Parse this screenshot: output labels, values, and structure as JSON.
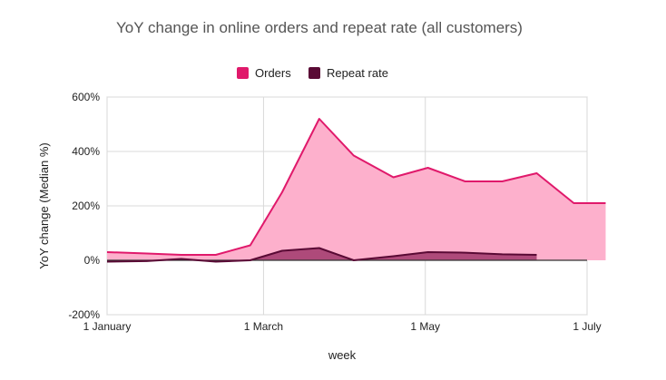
{
  "chart_data": {
    "type": "area",
    "title": "YoY change in online orders and repeat rate (all customers)",
    "xlabel": "week",
    "ylabel": "YoY change (Median %)",
    "x_ticks": [
      {
        "label": "1 January",
        "value": 0
      },
      {
        "label": "1 March",
        "value": 59
      },
      {
        "label": "1 May",
        "value": 120
      },
      {
        "label": "1 July",
        "value": 181
      }
    ],
    "xlim": [
      0,
      181
    ],
    "y_ticks": [
      "600%",
      "400%",
      "200%",
      "0%",
      "-200%"
    ],
    "ylim": [
      -200,
      600
    ],
    "grid": true,
    "legend_position": "top",
    "series": [
      {
        "name": "Orders",
        "color": "#e0196b",
        "fill": "#fdb0cc",
        "x": [
          0,
          15,
          28,
          41,
          54,
          66,
          80,
          93,
          108,
          121,
          135,
          149,
          162,
          176,
          188
        ],
        "y": [
          30,
          25,
          20,
          20,
          55,
          250,
          520,
          385,
          305,
          340,
          290,
          290,
          320,
          210,
          210
        ]
      },
      {
        "name": "Repeat rate",
        "color": "#5a0a35",
        "fill": "#a0386b",
        "x": [
          0,
          15,
          28,
          41,
          54,
          66,
          80,
          93,
          108,
          121,
          135,
          149,
          162
        ],
        "y": [
          -5,
          -3,
          5,
          -5,
          0,
          35,
          45,
          0,
          15,
          30,
          28,
          22,
          20
        ]
      }
    ]
  }
}
